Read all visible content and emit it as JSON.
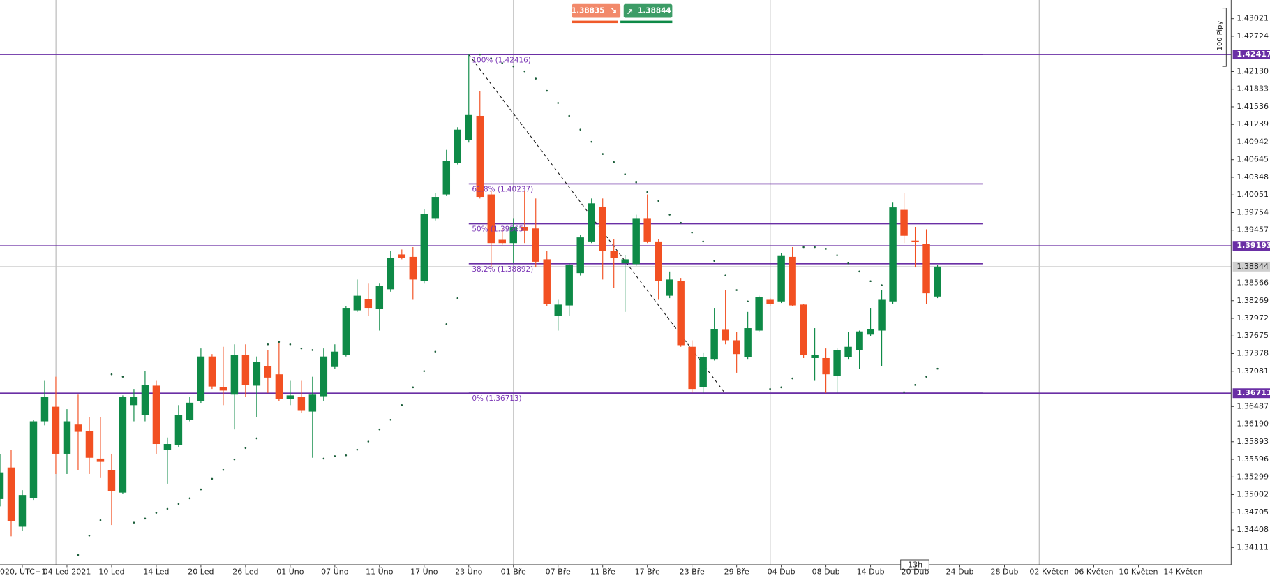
{
  "chart_data": {
    "type": "candlestick",
    "categories": [
      null,
      null,
      "020, UTC+1",
      null,
      null,
      null,
      "04 Led 2021",
      null,
      null,
      null,
      "10 Led",
      null,
      null,
      null,
      "14 Led",
      null,
      null,
      null,
      "20 Led",
      null,
      null,
      null,
      "26 Led",
      null,
      null,
      null,
      "01 Úno",
      null,
      null,
      null,
      "07 Úno",
      null,
      null,
      null,
      "11 Úno",
      null,
      null,
      null,
      "17 Úno",
      null,
      null,
      null,
      "23 Úno",
      null,
      null,
      null,
      "01 Bře",
      null,
      null,
      null,
      "07 Bře",
      null,
      null,
      null,
      "11 Bře",
      null,
      null,
      null,
      "17 Bře",
      null,
      null,
      null,
      "23 Bře",
      null,
      null,
      null,
      "29 Bře",
      null,
      null,
      null,
      "04 Dub",
      null,
      null,
      null,
      "08 Dub",
      null,
      null,
      null,
      "14 Dub",
      null,
      null,
      null,
      "20 Dub",
      null,
      null,
      null,
      "24 Dub",
      null,
      null,
      null,
      "28 Dub",
      null,
      null,
      null,
      "02 Květen",
      null,
      null,
      null,
      "06 Květen",
      null,
      null,
      null,
      "10 Květen",
      null,
      null,
      null,
      "14 Květen",
      null
    ],
    "open": [
      1.34927,
      1.35459,
      1.34462,
      1.3494,
      1.36237,
      1.36483,
      1.35691,
      1.36182,
      1.36073,
      1.35609,
      1.35418,
      1.35036,
      1.3651,
      1.36346,
      1.36838,
      1.35759,
      1.35841,
      1.36264,
      1.36578,
      1.37329,
      1.3681,
      1.36687,
      1.37356,
      1.36838,
      1.37165,
      1.37029,
      1.36619,
      1.36646,
      1.36401,
      1.3666,
      1.37152,
      1.37356,
      1.38107,
      1.38298,
      1.38134,
      1.38462,
      1.39049,
      1.39008,
      1.38598,
      1.39649,
      1.40059,
      1.40591,
      1.40974,
      1.41383,
      1.40059,
      1.39295,
      1.3924,
      1.39513,
      1.39486,
      1.38967,
      1.38011,
      1.38189,
      1.38735,
      1.39267,
      1.39854,
      1.39103,
      1.38899,
      1.38885,
      1.39649,
      1.39267,
      1.38353,
      1.38598,
      1.37493,
      1.3681,
      1.37288,
      1.37779,
      1.37602,
      1.37315,
      1.37766,
      1.38284,
      1.38257,
      1.39008,
      1.38203,
      1.37302,
      1.37302,
      1.37001,
      1.37315,
      1.37438,
      1.37698,
      1.37766,
      1.38257,
      1.398,
      1.39281,
      1.39226,
      1.38339,
      null,
      null,
      null,
      null,
      null,
      null,
      null,
      null,
      null,
      null,
      null,
      null,
      null,
      null,
      null,
      null,
      null,
      null,
      null,
      null,
      null,
      null,
      null
    ],
    "high": [
      1.35691,
      1.35759,
      1.35077,
      1.36264,
      1.36919,
      1.36988,
      1.36442,
      1.36687,
      1.36305,
      1.36305,
      1.35691,
      1.36674,
      1.36783,
      1.37083,
      1.36919,
      1.35964,
      1.3651,
      1.36646,
      1.37465,
      1.3737,
      1.37493,
      1.37534,
      1.37534,
      1.37329,
      1.37438,
      1.37575,
      1.36919,
      1.36919,
      1.36988,
      1.37465,
      1.37534,
      1.38175,
      1.38626,
      1.38557,
      1.38557,
      1.39103,
      1.39131,
      1.39172,
      1.39813,
      1.40086,
      1.4081,
      1.41192,
      1.42416,
      1.41806,
      1.40127,
      1.39486,
      1.39649,
      1.40127,
      1.39991,
      1.39103,
      1.38284,
      1.38899,
      1.39376,
      1.39991,
      1.39991,
      1.39308,
      1.39035,
      1.39718,
      1.40059,
      1.39308,
      1.38762,
      1.38653,
      1.37602,
      1.37397,
      1.38148,
      1.38448,
      1.37738,
      1.3808,
      1.38353,
      1.38312,
      1.39076,
      1.39172,
      1.38216,
      1.37807,
      1.37465,
      1.37465,
      1.37738,
      1.37766,
      1.38148,
      1.38448,
      1.39922,
      1.40086,
      1.39513,
      1.39472,
      1.38871,
      null,
      null,
      null,
      null,
      null,
      null,
      null,
      null,
      null,
      null,
      null,
      null,
      null,
      null,
      null,
      null,
      null,
      null,
      null,
      null,
      null,
      null,
      null
    ],
    "low": [
      1.34804,
      1.34299,
      1.34394,
      1.34913,
      1.36169,
      1.3535,
      1.3535,
      1.35418,
      1.3535,
      1.35281,
      1.3449,
      1.35008,
      1.36237,
      1.36237,
      1.35691,
      1.35186,
      1.358,
      1.36237,
      1.36537,
      1.36783,
      1.3651,
      1.361,
      1.36646,
      1.36305,
      1.36715,
      1.36578,
      1.3651,
      1.36373,
      1.35623,
      1.36578,
      1.37124,
      1.37329,
      1.3808,
      1.38011,
      1.37766,
      1.38421,
      1.38967,
      1.38284,
      1.38557,
      1.39622,
      1.40032,
      1.40564,
      1.40933,
      1.39991,
      1.3883,
      1.39213,
      1.38899,
      1.3924,
      1.3883,
      1.38175,
      1.37766,
      1.38011,
      1.38694,
      1.3924,
      1.38626,
      1.38489,
      1.3808,
      1.38858,
      1.3924,
      1.38284,
      1.38312,
      1.37493,
      1.36715,
      1.36715,
      1.37261,
      1.37534,
      1.37056,
      1.37288,
      1.37738,
      1.38175,
      1.3823,
      1.38175,
      1.37302,
      1.36919,
      1.36715,
      1.36715,
      1.37288,
      1.37124,
      1.3767,
      1.37165,
      1.38216,
      1.3924,
      1.3883,
      1.38216,
      1.38312,
      null,
      null,
      null,
      null,
      null,
      null,
      null,
      null,
      null,
      null,
      null,
      null,
      null,
      null,
      null,
      null,
      null,
      null,
      null,
      null,
      null,
      null,
      null
    ],
    "close": [
      1.35377,
      1.34558,
      1.34995,
      1.36237,
      1.36646,
      1.35691,
      1.36237,
      1.3606,
      1.35623,
      1.35554,
      1.35063,
      1.36646,
      1.36646,
      1.36851,
      1.35855,
      1.35855,
      1.36346,
      1.36551,
      1.37329,
      1.36824,
      1.36756,
      1.37356,
      1.36851,
      1.37233,
      1.36974,
      1.36619,
      1.36674,
      1.36414,
      1.36687,
      1.37329,
      1.37411,
      1.38148,
      1.38353,
      1.38148,
      1.38517,
      1.38994,
      1.38994,
      1.38626,
      1.39731,
      1.40018,
      1.40619,
      1.41151,
      1.41397,
      1.40018,
      1.3924,
      1.3924,
      1.39513,
      1.39445,
      1.38926,
      1.38216,
      1.38203,
      1.38871,
      1.39335,
      1.39909,
      1.39103,
      1.38994,
      1.38967,
      1.39649,
      1.39267,
      1.38598,
      1.38626,
      1.3752,
      1.36783,
      1.37315,
      1.37793,
      1.37602,
      1.3737,
      1.37807,
      1.38325,
      1.38216,
      1.39022,
      1.38189,
      1.37356,
      1.37356,
      1.37029,
      1.37438,
      1.37493,
      1.37752,
      1.37793,
      1.38284,
      1.39841,
      1.39363,
      1.39254,
      1.38394,
      1.38844,
      null,
      null,
      null,
      null,
      null,
      null,
      null,
      null,
      null,
      null,
      null,
      null,
      null,
      null,
      null,
      null,
      null,
      null,
      null,
      null,
      null,
      null,
      null
    ],
    "up_color": "#0e8a47",
    "down_color": "#f25022",
    "sar": [
      null,
      null,
      null,
      null,
      null,
      null,
      null,
      1.33985,
      1.34312,
      1.34572,
      1.37029,
      1.36988,
      1.34531,
      1.34599,
      1.34695,
      1.34763,
      1.34845,
      1.3494,
      1.3509,
      1.35268,
      1.35418,
      1.35595,
      1.35787,
      1.3595,
      1.37534,
      1.37575,
      1.37534,
      1.37465,
      1.37438,
      1.35609,
      1.3565,
      1.35664,
      1.35759,
      1.35896,
      1.361,
      1.36264,
      1.3651,
      1.3681,
      1.37083,
      1.37411,
      1.37875,
      1.38312,
      null,
      1.42416,
      1.42352,
      1.4227,
      1.42216,
      1.42134,
      1.42011,
      1.41806,
      1.41601,
      1.41383,
      1.41151,
      1.40946,
      1.40741,
      1.40605,
      1.404,
      1.40264,
      1.401,
      1.3995,
      1.39718,
      1.39581,
      1.39417,
      1.39267,
      1.3894,
      1.38694,
      1.38448,
      1.38257,
      null,
      1.36783,
      1.3681,
      1.3696,
      1.39172,
      1.39172,
      1.39144,
      1.39035,
      1.38899,
      1.38762,
      1.38598,
      1.3853,
      null,
      1.36728,
      1.36851,
      1.36988,
      1.37124,
      null,
      null,
      null,
      null,
      null,
      null,
      null,
      null,
      null,
      null,
      null,
      null,
      null,
      null,
      null,
      null,
      null,
      null,
      null,
      null,
      null,
      null,
      null
    ],
    "sar_color": "#1b5e3a",
    "ylim": [
      1.33821,
      1.43335
    ],
    "yticks": [
      1.43021,
      1.42724,
      {
        "value": 1.4213,
        "label": "1.42130"
      },
      1.41833,
      1.41536,
      1.41239,
      1.40942,
      1.40645,
      1.40348,
      1.40051,
      1.39754,
      1.39457,
      1.38566,
      1.38269,
      1.37972,
      1.37675,
      1.37378,
      1.37081,
      1.36487,
      {
        "value": 1.3619,
        "label": "1.36190"
      },
      1.35893,
      1.35596,
      1.35299,
      1.35002,
      1.34705,
      1.34408,
      1.34111
    ],
    "levels": [
      1.42417,
      1.39193,
      1.36711
    ],
    "level_color": "#6a2fa5",
    "current_price": 1.38844,
    "fib_levels": [
      {
        "value": 1.42416,
        "label": "100% (1.42416)"
      },
      {
        "value": 1.40237,
        "label": "61.8% (1.40237)"
      },
      {
        "value": 1.39565,
        "label": "50% (1.39565)"
      },
      {
        "value": 1.38892,
        "label": "38.2% (1.38892)"
      },
      {
        "value": 1.36713,
        "label": "0% (1.36713)"
      }
    ],
    "sell_price": 1.38835,
    "buy_price": 1.38844,
    "pip_label": "100 Pipy",
    "timer": "13h"
  }
}
